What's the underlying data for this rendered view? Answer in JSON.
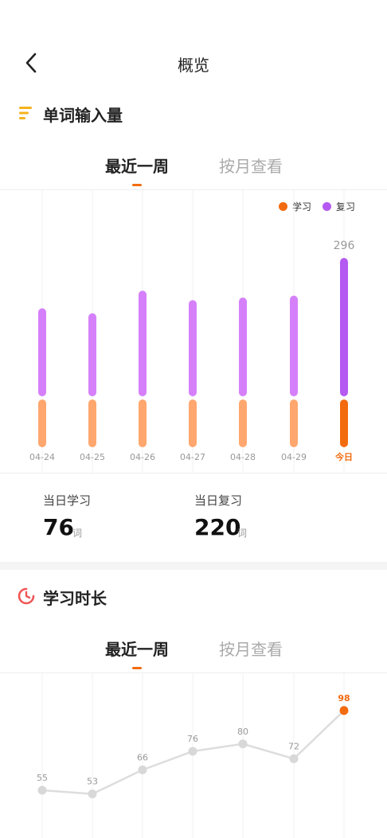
{
  "header": {
    "title": "概览",
    "back_icon": "chevron-left-icon"
  },
  "word_input": {
    "title": "单词输入量",
    "icon": "bars-icon",
    "tabs": [
      {
        "label": "最近一周",
        "active": true
      },
      {
        "label": "按月查看",
        "active": false
      }
    ],
    "legend": [
      {
        "label": "学习",
        "color": "#f26b0f"
      },
      {
        "label": "复习",
        "color": "#b45af2"
      }
    ],
    "stats": {
      "study_label": "当日学习",
      "study_value": "76",
      "study_unit": "词",
      "review_label": "当日复习",
      "review_value": "220",
      "review_unit": "词"
    }
  },
  "study_time": {
    "title": "学习时长",
    "icon": "timer-icon",
    "tabs": [
      {
        "label": "最近一周",
        "active": true
      },
      {
        "label": "按月查看",
        "active": false
      }
    ]
  },
  "chart_data": [
    {
      "type": "bar",
      "stacked": true,
      "categories": [
        "04-24",
        "04-25",
        "04-26",
        "04-27",
        "04-28",
        "04-29",
        "今日"
      ],
      "series": [
        {
          "name": "学习",
          "values": [
            76,
            76,
            76,
            76,
            76,
            76,
            76
          ]
        },
        {
          "name": "复习",
          "values": [
            140,
            132,
            168,
            153,
            157,
            160,
            220
          ]
        }
      ],
      "total_labels": [
        "",
        "",
        "",
        "",
        "",
        "",
        "296"
      ],
      "highlight_index": 6,
      "colors": {
        "study": "#ffa76e",
        "review": "#d580fa",
        "study_today": "#f26b0f",
        "review_today": "#b45af2",
        "tick": "#999999",
        "tick_today": "#f26b0f"
      }
    },
    {
      "type": "line",
      "x": [
        "",
        "",
        "",
        "",
        "",
        "",
        ""
      ],
      "values": [
        55,
        53,
        66,
        76,
        80,
        72,
        98
      ],
      "highlight_index": 6,
      "colors": {
        "line": "#dddddd",
        "point": "#d8d8d8",
        "point_today": "#f26b0f",
        "label": "#999999",
        "label_today": "#f26b0f"
      }
    }
  ]
}
